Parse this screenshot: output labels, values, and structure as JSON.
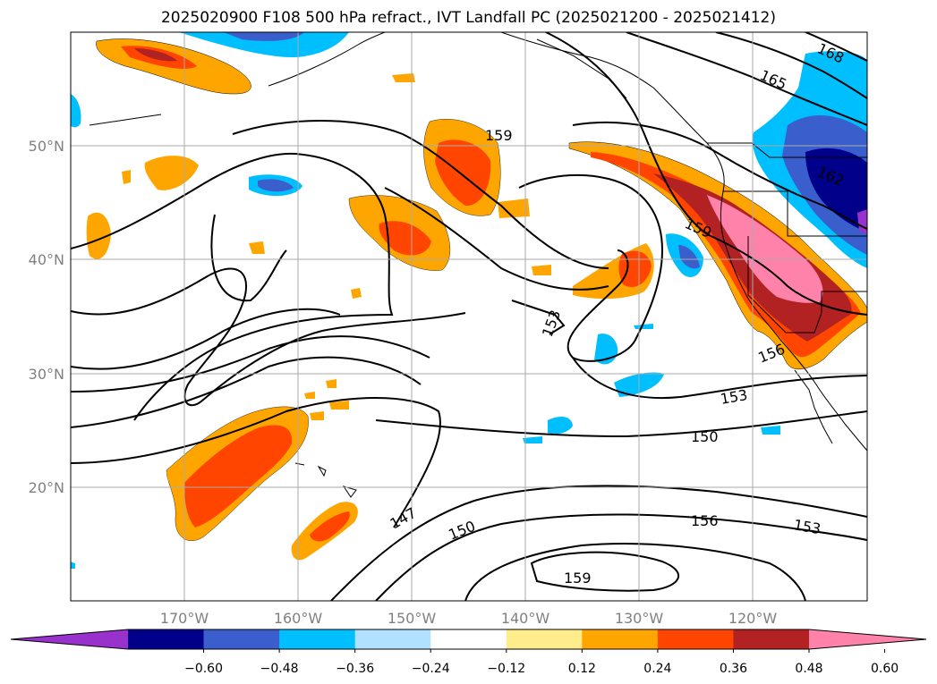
{
  "title": "2025020900 F108 500 hPa refract., IVT Landfall PC (2025021200 - 2025021412)",
  "latitude_labels": [
    "50°N",
    "40°N",
    "30°N",
    "20°N"
  ],
  "longitude_labels": [
    "170°W",
    "160°W",
    "150°W",
    "140°W",
    "130°W",
    "120°W"
  ],
  "contour_labels": [
    "168",
    "165",
    "162",
    "159",
    "159",
    "153",
    "156",
    "153",
    "150",
    "147",
    "150",
    "156",
    "153",
    "159"
  ],
  "colorbar": {
    "ticks": [
      "−0.60",
      "−0.48",
      "−0.36",
      "−0.24",
      "−0.12",
      "0.12",
      "0.24",
      "0.36",
      "0.48",
      "0.60"
    ],
    "colors": [
      "#9932cc",
      "#00008b",
      "#3a5fcd",
      "#00bfff",
      "#b0e2ff",
      "#ffffff",
      "#ffec8b",
      "#ffa500",
      "#ff4500",
      "#b22222",
      "#ff82ab"
    ],
    "extend": "both"
  }
}
